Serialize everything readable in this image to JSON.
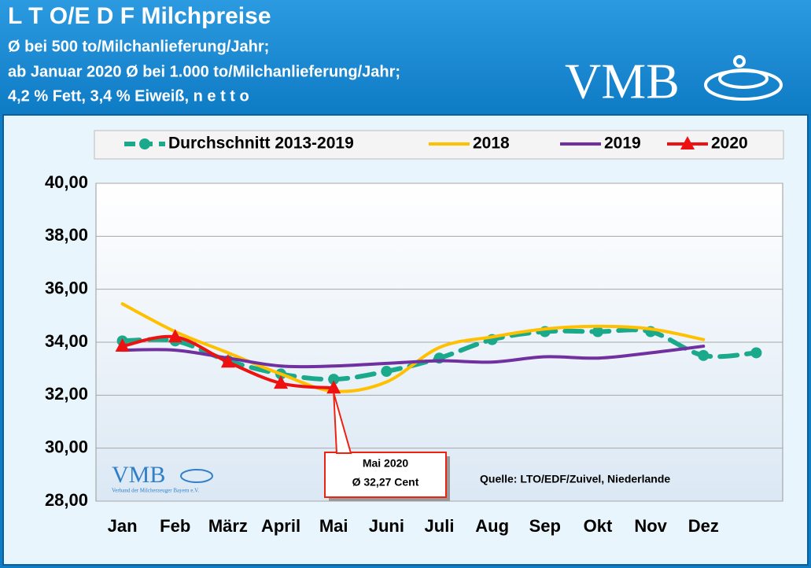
{
  "header": {
    "title": "L T O/E D F Milchpreise",
    "lines": [
      "Ø bei 500 to/Milchanlieferung/Jahr;",
      "ab Januar 2020 Ø bei 1.000 to/Milchanlieferung/Jahr;",
      "4,2 % Fett, 3,4 % Eiweiß, n e t t o"
    ],
    "logo": "VMB"
  },
  "chart_data": {
    "type": "line",
    "categories": [
      "Jan",
      "Feb",
      "März",
      "April",
      "Mai",
      "Juni",
      "Juli",
      "Aug",
      "Sep",
      "Okt",
      "Nov",
      "Dez",
      null
    ],
    "series": [
      {
        "name": "Durchschnitt 2013-2019",
        "color": "#1ba98b",
        "dashed": true,
        "marker": "circle",
        "values": [
          34.05,
          34.05,
          33.3,
          32.8,
          32.6,
          32.9,
          33.4,
          34.1,
          34.4,
          34.4,
          34.4,
          33.5,
          33.6
        ]
      },
      {
        "name": "2018",
        "color": "#ffc000",
        "dashed": false,
        "marker": null,
        "values": [
          35.45,
          34.4,
          33.6,
          32.8,
          32.15,
          32.5,
          33.8,
          34.2,
          34.5,
          34.6,
          34.5,
          34.1,
          null
        ]
      },
      {
        "name": "2019",
        "color": "#7030a0",
        "dashed": false,
        "marker": null,
        "values": [
          33.7,
          33.7,
          33.4,
          33.1,
          33.1,
          33.2,
          33.3,
          33.25,
          33.45,
          33.4,
          33.6,
          33.85,
          null
        ]
      },
      {
        "name": "2020",
        "color": "#ee1111",
        "dashed": false,
        "marker": "triangle",
        "values": [
          33.85,
          34.2,
          33.25,
          32.45,
          32.27,
          null,
          null,
          null,
          null,
          null,
          null,
          null,
          null
        ]
      }
    ],
    "ylim": [
      28,
      40
    ],
    "yticks": [
      {
        "value": 28,
        "label": "28,00"
      },
      {
        "value": 30,
        "label": "30,00"
      },
      {
        "value": 32,
        "label": "32,00"
      },
      {
        "value": 34,
        "label": "34,00"
      },
      {
        "value": 36,
        "label": "36,00"
      },
      {
        "value": 38,
        "label": "38,00"
      },
      {
        "value": 40,
        "label": "40,00"
      }
    ],
    "grid": true,
    "legend": "top",
    "annotation": [
      "Mai 2020",
      "Ø 32,27 Cent"
    ],
    "source": "Quelle: LTO/EDF/Zuivel, Niederlande",
    "watermark": {
      "logo": "VMB",
      "text": "Verband der Milcherzeuger Bayern e.V."
    }
  }
}
